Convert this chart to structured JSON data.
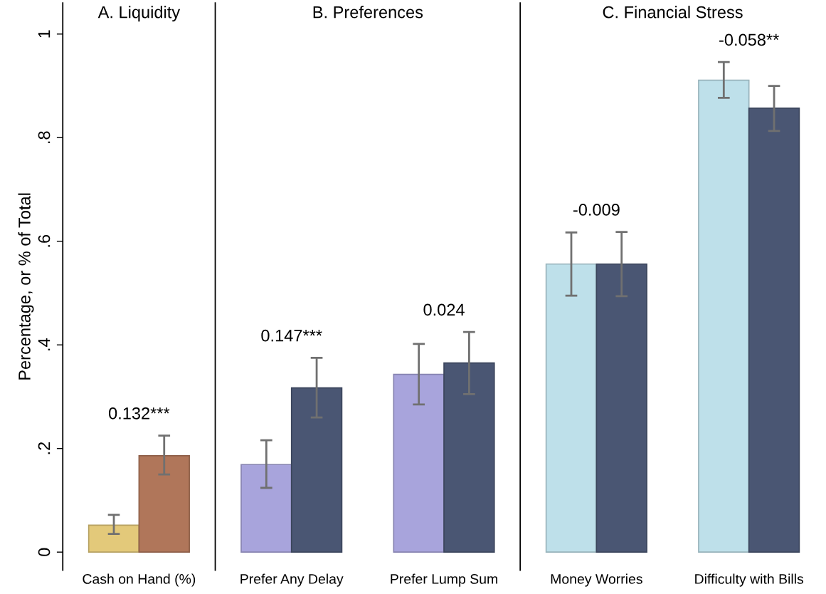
{
  "chart_data": [
    {
      "type": "bar",
      "title": "A. Liquidity",
      "ylabel": "Percentage, or % of Total",
      "categories": [
        "Cash on Hand (%)"
      ],
      "series": [
        {
          "color": "#e3c97a",
          "values": [
            0.052
          ],
          "errors": [
            [
              0.035,
              0.072
            ]
          ]
        },
        {
          "color": "#b0765a",
          "values": [
            0.186
          ],
          "errors": [
            [
              0.15,
              0.225
            ]
          ]
        }
      ],
      "ylim": [
        -0.035,
        1.06
      ],
      "yticks": [
        0,
        {
          "value": 0.2,
          "label": ".2"
        },
        {
          "value": 0.4,
          "label": ".4"
        },
        {
          "value": 0.6,
          "label": ".6"
        },
        {
          "value": 0.8,
          "label": ".8"
        },
        1
      ],
      "annotations": [
        "0.132***"
      ]
    },
    {
      "type": "bar",
      "title": "B. Preferences",
      "categories": [
        "Prefer Any Delay",
        "Prefer Lump Sum"
      ],
      "series": [
        {
          "color": "#a8a4dc",
          "values": [
            0.169,
            0.343
          ],
          "errors": [
            [
              0.124,
              0.216
            ],
            [
              0.285,
              0.402
            ]
          ]
        },
        {
          "color": "#4a5673",
          "values": [
            0.317,
            0.365
          ],
          "errors": [
            [
              0.26,
              0.375
            ],
            [
              0.305,
              0.425
            ]
          ]
        }
      ],
      "ylim": [
        -0.035,
        1.06
      ],
      "tick_labels": "x",
      "annotations": [
        "0.147***",
        "0.024"
      ]
    },
    {
      "type": "bar",
      "title": "C. Financial Stress",
      "categories": [
        "Money Worries",
        "Difficulty with Bills"
      ],
      "series": [
        {
          "color": "#bee0ea",
          "values": [
            0.556,
            0.911
          ],
          "errors": [
            [
              0.495,
              0.617
            ],
            [
              0.877,
              0.946
            ]
          ]
        },
        {
          "color": "#4a5673",
          "values": [
            0.556,
            0.857
          ],
          "errors": [
            [
              0.494,
              0.618
            ],
            [
              0.813,
              0.9
            ]
          ]
        }
      ],
      "ylim": [
        -0.035,
        1.06
      ],
      "tick_labels": "x",
      "annotations": [
        "-0.009",
        "-0.058**"
      ]
    }
  ]
}
